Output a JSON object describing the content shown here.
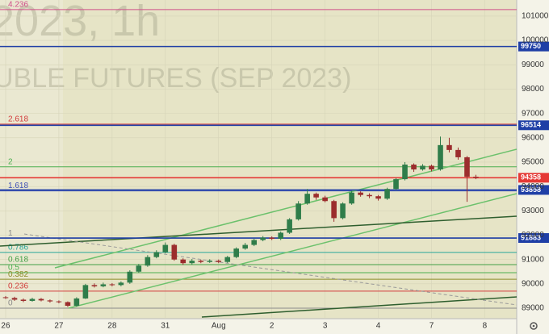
{
  "chart_data": {
    "type": "candlestick",
    "watermark": [
      "2023, 1h",
      "UBLE FUTURES (SEP 2023)"
    ],
    "x": [
      0,
      0.167,
      0.333,
      0.5,
      0.667,
      0.833,
      1,
      1.167,
      1.333,
      1.5,
      1.667,
      1.833,
      2,
      2.167,
      2.333,
      2.5,
      2.667,
      2.833,
      3,
      3.167,
      3.333,
      3.5,
      3.667,
      3.833,
      4,
      4.167,
      4.333,
      4.5,
      4.667,
      4.833,
      5,
      5.167,
      5.333,
      5.5,
      5.667,
      5.833,
      6,
      6.167,
      6.333,
      6.5,
      6.667,
      6.833,
      7,
      7.167,
      7.333,
      7.5,
      7.667,
      7.833,
      8,
      8.167,
      8.333,
      8.5,
      8.667,
      8.833
    ],
    "open": [
      89450,
      89420,
      89350,
      89300,
      89380,
      89320,
      89280,
      89250,
      89100,
      89400,
      89950,
      89900,
      89980,
      89950,
      90050,
      90500,
      90750,
      91100,
      91300,
      91600,
      91000,
      90850,
      90950,
      90900,
      90950,
      90900,
      91100,
      91450,
      91600,
      91800,
      91900,
      91850,
      92100,
      92650,
      93300,
      93700,
      93550,
      93400,
      92700,
      93300,
      93750,
      93650,
      93600,
      93500,
      93900,
      94300,
      94900,
      94700,
      94850,
      94700,
      95700,
      95500,
      95200,
      94400
    ],
    "high": [
      89500,
      89470,
      89400,
      89430,
      89420,
      89360,
      89320,
      89280,
      89450,
      90000,
      90020,
      90050,
      90030,
      90100,
      90560,
      90820,
      91180,
      91380,
      91700,
      91650,
      91050,
      91020,
      90990,
      91010,
      91000,
      91150,
      91500,
      91680,
      91850,
      91960,
      91950,
      92150,
      92700,
      93400,
      93900,
      93750,
      93620,
      93450,
      93350,
      93820,
      93800,
      93720,
      93650,
      93950,
      94350,
      95000,
      94950,
      94920,
      94900,
      96050,
      96000,
      95600,
      95250,
      94480
    ],
    "low": [
      89380,
      89300,
      89250,
      89270,
      89280,
      89230,
      89200,
      89050,
      89060,
      89380,
      89850,
      89860,
      89900,
      89900,
      90000,
      90450,
      90700,
      91050,
      91250,
      90950,
      90780,
      90800,
      90850,
      90860,
      90850,
      90860,
      91050,
      91400,
      91550,
      91750,
      91800,
      91800,
      92050,
      92600,
      93250,
      93450,
      93350,
      92550,
      92650,
      93250,
      93580,
      93520,
      93420,
      93450,
      93850,
      94250,
      94600,
      94650,
      94620,
      94650,
      95400,
      95100,
      93370,
      94300
    ],
    "close": [
      89420,
      89350,
      89300,
      89380,
      89320,
      89280,
      89250,
      89100,
      89400,
      89950,
      89900,
      89980,
      89950,
      90050,
      90500,
      90750,
      91100,
      91300,
      91600,
      91000,
      90850,
      90950,
      90900,
      90950,
      90900,
      91100,
      91450,
      91600,
      91800,
      91900,
      91850,
      92100,
      92650,
      93300,
      93700,
      93550,
      93400,
      92700,
      93300,
      93750,
      93650,
      93600,
      93500,
      93900,
      94300,
      94900,
      94700,
      94850,
      94700,
      95700,
      95500,
      95200,
      94400,
      94358
    ],
    "up_color": "#2f7d4a",
    "down_color": "#9b2d2d",
    "xlim": [
      -0.106,
      9.6
    ],
    "xticks": [
      {
        "value": 0,
        "label": "26"
      },
      {
        "value": 1,
        "label": "27"
      },
      {
        "value": 2,
        "label": "28"
      },
      {
        "value": 3,
        "label": "31"
      },
      {
        "value": 4,
        "label": "Aug"
      },
      {
        "value": 5,
        "label": "2"
      },
      {
        "value": 6,
        "label": "3"
      },
      {
        "value": 7,
        "label": "4"
      },
      {
        "value": 8,
        "label": "7"
      },
      {
        "value": 9,
        "label": "8"
      }
    ],
    "ylim": [
      88570,
      101660
    ],
    "yticks": [
      89000,
      90000,
      91000,
      92000,
      93000,
      94000,
      95000,
      96000,
      97000,
      98000,
      99000,
      100000,
      101000
    ],
    "grid": true,
    "levels": [
      {
        "value": 99750,
        "color": "#1f3fa6"
      },
      {
        "value": 96514,
        "color": "#1f3fa6"
      },
      {
        "value": 94358,
        "color": "#e53935"
      },
      {
        "value": 93858,
        "color": "#1f3fa6"
      },
      {
        "value": 91883,
        "color": "#1f3fa6"
      }
    ],
    "fib_levels": [
      {
        "ratio": 4.236,
        "price": 101265,
        "color": "#d0508a"
      },
      {
        "ratio": 2.618,
        "price": 96560,
        "color": "#d23b3b"
      },
      {
        "ratio": 2,
        "price": 94810,
        "color": "#4caf50"
      },
      {
        "ratio": 1.618,
        "price": 93820,
        "color": "#3f51b5"
      },
      {
        "ratio": 1,
        "price": 91880,
        "color": "#8a8a8a"
      },
      {
        "ratio": 0.786,
        "price": 91290,
        "color": "#26a69a"
      },
      {
        "ratio": 0.618,
        "price": 90790,
        "color": "#43a047"
      },
      {
        "ratio": 0.5,
        "price": 90460,
        "color": "#4caf50"
      },
      {
        "ratio": 0.382,
        "price": 90190,
        "color": "#8d8d2a"
      },
      {
        "ratio": 0.236,
        "price": 89700,
        "color": "#d23b3b"
      },
      {
        "ratio": 0,
        "price": 89000,
        "color": "#8a8a8a"
      }
    ]
  }
}
